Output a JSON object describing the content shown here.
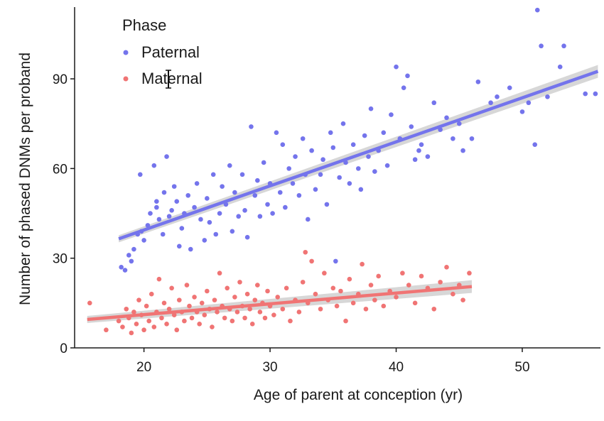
{
  "chart_data": {
    "type": "scatter",
    "xlabel": "Age of parent at conception (yr)",
    "ylabel": "Number of phased DNMs per proband",
    "xlim": [
      14.5,
      56.2
    ],
    "ylim": [
      0,
      114
    ],
    "x_ticks": [
      20,
      30,
      40,
      50
    ],
    "y_ticks": [
      0,
      30,
      60,
      90
    ],
    "x_tick_labels": [
      "20",
      "30",
      "40",
      "50"
    ],
    "y_tick_labels": [
      "0",
      "30",
      "60",
      "90"
    ],
    "grid": false,
    "legend": {
      "title": "Phase",
      "position": "top-left",
      "entries": [
        "Paternal",
        "Maternal"
      ]
    },
    "series": [
      {
        "name": "Paternal",
        "color": "#7474EC",
        "fit": {
          "x": [
            18,
            56
          ],
          "y": [
            36.5,
            92.5
          ]
        },
        "points": [
          [
            18.2,
            27
          ],
          [
            18.5,
            26
          ],
          [
            18.8,
            31
          ],
          [
            19,
            29
          ],
          [
            19.2,
            33
          ],
          [
            19.5,
            38
          ],
          [
            19.7,
            58
          ],
          [
            19.8,
            39
          ],
          [
            20,
            36
          ],
          [
            20.3,
            41
          ],
          [
            20.5,
            45
          ],
          [
            20.8,
            61
          ],
          [
            21,
            47
          ],
          [
            21,
            49
          ],
          [
            21.2,
            43
          ],
          [
            21.5,
            38
          ],
          [
            21.6,
            52
          ],
          [
            21.8,
            64
          ],
          [
            22,
            44
          ],
          [
            22.2,
            46
          ],
          [
            22.4,
            54
          ],
          [
            22.6,
            49
          ],
          [
            22.8,
            34
          ],
          [
            23,
            40
          ],
          [
            23.2,
            45
          ],
          [
            23.5,
            51
          ],
          [
            23.7,
            33
          ],
          [
            24,
            47
          ],
          [
            24.2,
            55
          ],
          [
            24.5,
            43
          ],
          [
            24.8,
            36
          ],
          [
            25,
            50
          ],
          [
            25.2,
            42
          ],
          [
            25.5,
            58
          ],
          [
            25.7,
            38
          ],
          [
            26,
            45
          ],
          [
            26.2,
            54
          ],
          [
            26.5,
            48
          ],
          [
            26.8,
            61
          ],
          [
            27,
            39
          ],
          [
            27.2,
            52
          ],
          [
            27.5,
            44
          ],
          [
            27.8,
            58
          ],
          [
            28,
            46
          ],
          [
            28.2,
            37
          ],
          [
            28.5,
            74
          ],
          [
            28.8,
            51
          ],
          [
            29,
            56
          ],
          [
            29.2,
            44
          ],
          [
            29.5,
            62
          ],
          [
            29.8,
            48
          ],
          [
            30,
            55
          ],
          [
            30.2,
            45
          ],
          [
            30.5,
            72
          ],
          [
            30.8,
            52
          ],
          [
            31,
            68
          ],
          [
            31.2,
            47
          ],
          [
            31.5,
            60
          ],
          [
            31.8,
            55
          ],
          [
            32,
            64
          ],
          [
            32.3,
            51
          ],
          [
            32.6,
            70
          ],
          [
            32.8,
            58
          ],
          [
            33,
            43
          ],
          [
            33.3,
            66
          ],
          [
            33.6,
            53
          ],
          [
            34,
            58
          ],
          [
            34.2,
            63
          ],
          [
            34.5,
            48
          ],
          [
            34.8,
            72
          ],
          [
            35,
            67
          ],
          [
            35.2,
            29
          ],
          [
            35.5,
            57
          ],
          [
            35.8,
            75
          ],
          [
            36,
            62
          ],
          [
            36.3,
            55
          ],
          [
            36.6,
            68
          ],
          [
            37,
            60
          ],
          [
            37.2,
            53
          ],
          [
            37.5,
            71
          ],
          [
            37.8,
            64
          ],
          [
            38,
            80
          ],
          [
            38.3,
            59
          ],
          [
            38.6,
            66
          ],
          [
            39,
            72
          ],
          [
            39.3,
            61
          ],
          [
            39.6,
            78
          ],
          [
            40,
            94
          ],
          [
            40.3,
            70
          ],
          [
            40.6,
            87
          ],
          [
            40.9,
            91
          ],
          [
            41.2,
            74
          ],
          [
            41.5,
            63
          ],
          [
            41.8,
            66
          ],
          [
            42,
            68
          ],
          [
            42.5,
            64
          ],
          [
            43,
            82
          ],
          [
            43.5,
            73
          ],
          [
            44,
            77
          ],
          [
            44.5,
            70
          ],
          [
            45,
            75
          ],
          [
            45.3,
            66
          ],
          [
            46,
            70
          ],
          [
            46.5,
            89
          ],
          [
            47.5,
            82
          ],
          [
            48,
            84
          ],
          [
            49,
            87
          ],
          [
            50,
            79
          ],
          [
            50.5,
            82
          ],
          [
            51,
            68
          ],
          [
            51.2,
            113
          ],
          [
            51.5,
            101
          ],
          [
            52,
            84
          ],
          [
            53,
            94
          ],
          [
            53.3,
            101
          ],
          [
            55,
            85
          ],
          [
            55.8,
            85
          ]
        ]
      },
      {
        "name": "Maternal",
        "color": "#F07474",
        "fit": {
          "x": [
            15.5,
            46
          ],
          "y": [
            9.5,
            20.5
          ]
        },
        "points": [
          [
            15.7,
            15
          ],
          [
            17,
            6
          ],
          [
            18,
            9
          ],
          [
            18.3,
            7
          ],
          [
            18.6,
            13
          ],
          [
            18.8,
            10
          ],
          [
            19,
            5
          ],
          [
            19.2,
            12
          ],
          [
            19.4,
            8
          ],
          [
            19.6,
            16
          ],
          [
            19.8,
            11
          ],
          [
            20,
            6
          ],
          [
            20.2,
            14
          ],
          [
            20.4,
            9
          ],
          [
            20.6,
            18
          ],
          [
            20.8,
            7
          ],
          [
            21,
            12
          ],
          [
            21.2,
            23
          ],
          [
            21.4,
            10
          ],
          [
            21.6,
            15
          ],
          [
            21.8,
            8
          ],
          [
            22,
            13
          ],
          [
            22.2,
            20
          ],
          [
            22.4,
            11
          ],
          [
            22.6,
            6
          ],
          [
            22.8,
            16
          ],
          [
            23,
            12
          ],
          [
            23.2,
            9
          ],
          [
            23.4,
            21
          ],
          [
            23.6,
            14
          ],
          [
            23.8,
            10
          ],
          [
            24,
            17
          ],
          [
            24.2,
            12
          ],
          [
            24.4,
            8
          ],
          [
            24.6,
            15
          ],
          [
            24.8,
            11
          ],
          [
            25,
            19
          ],
          [
            25.2,
            13
          ],
          [
            25.4,
            7
          ],
          [
            25.6,
            16
          ],
          [
            25.8,
            12
          ],
          [
            26,
            25
          ],
          [
            26.2,
            14
          ],
          [
            26.4,
            10
          ],
          [
            26.6,
            20
          ],
          [
            26.8,
            13
          ],
          [
            27,
            9
          ],
          [
            27.2,
            17
          ],
          [
            27.4,
            12
          ],
          [
            27.6,
            22
          ],
          [
            27.8,
            14
          ],
          [
            28,
            10
          ],
          [
            28.2,
            18
          ],
          [
            28.4,
            13
          ],
          [
            28.6,
            8
          ],
          [
            28.8,
            16
          ],
          [
            29,
            21
          ],
          [
            29.2,
            12
          ],
          [
            29.4,
            15
          ],
          [
            29.6,
            10
          ],
          [
            29.8,
            19
          ],
          [
            30,
            14
          ],
          [
            30.3,
            11
          ],
          [
            30.6,
            17
          ],
          [
            31,
            13
          ],
          [
            31.3,
            20
          ],
          [
            31.6,
            9
          ],
          [
            32,
            16
          ],
          [
            32.3,
            12
          ],
          [
            32.6,
            22
          ],
          [
            32.8,
            32
          ],
          [
            33,
            15
          ],
          [
            33.3,
            29
          ],
          [
            33.6,
            18
          ],
          [
            34,
            13
          ],
          [
            34.3,
            25
          ],
          [
            34.6,
            16
          ],
          [
            35,
            20
          ],
          [
            35.3,
            14
          ],
          [
            35.6,
            19
          ],
          [
            36,
            9
          ],
          [
            36.3,
            23
          ],
          [
            36.6,
            15
          ],
          [
            37,
            18
          ],
          [
            37.3,
            28
          ],
          [
            37.6,
            13
          ],
          [
            38,
            21
          ],
          [
            38.3,
            16
          ],
          [
            38.6,
            24
          ],
          [
            39,
            14
          ],
          [
            39.5,
            19
          ],
          [
            40,
            17
          ],
          [
            40.5,
            25
          ],
          [
            41,
            21
          ],
          [
            41.5,
            15
          ],
          [
            42,
            24
          ],
          [
            42.5,
            20
          ],
          [
            43,
            13
          ],
          [
            43.5,
            22
          ],
          [
            44,
            27
          ],
          [
            44.5,
            18
          ],
          [
            45,
            21
          ],
          [
            45.3,
            16
          ],
          [
            45.8,
            25
          ]
        ]
      }
    ]
  }
}
